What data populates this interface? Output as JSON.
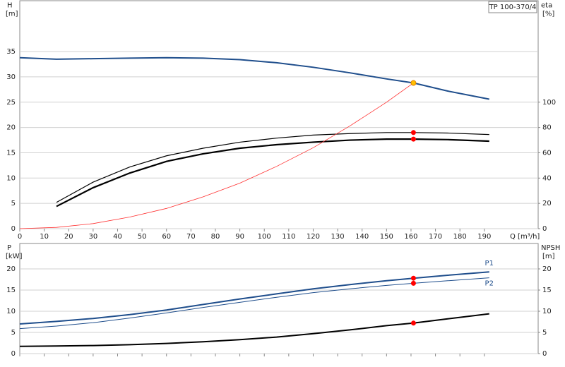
{
  "chart_data": [
    {
      "type": "line",
      "title": "TP 100-370/4",
      "ylabel": "H",
      "yunit": "[m]",
      "y2label": "eta",
      "y2unit": "[%]",
      "xlabel": "Q [m³/h]",
      "x": [
        0,
        15,
        30,
        45,
        60,
        75,
        90,
        105,
        120,
        135,
        150,
        161,
        175,
        192
      ],
      "xlim": [
        0,
        212
      ],
      "xticks": [
        0,
        10,
        20,
        30,
        40,
        50,
        60,
        70,
        80,
        90,
        100,
        110,
        120,
        130,
        140,
        150,
        160,
        170,
        180,
        190
      ],
      "ylim": [
        0,
        45
      ],
      "yticks": [
        0,
        5,
        10,
        15,
        20,
        25,
        30,
        35
      ],
      "y2lim": [
        0,
        180
      ],
      "y2ticks": [
        0,
        20,
        40,
        60,
        80,
        100
      ],
      "grid": true,
      "series": [
        {
          "color": "#1f4e8c",
          "width": 2,
          "values": [
            33.8,
            33.5,
            33.6,
            33.7,
            33.8,
            33.7,
            33.4,
            32.8,
            31.9,
            30.8,
            29.6,
            28.8,
            27.2,
            25.6
          ]
        },
        {
          "color": "#000000",
          "width": 1.2,
          "axis": "y2",
          "values": [
            null,
            20.8,
            36.8,
            48.8,
            57.6,
            63.6,
            68.4,
            71.6,
            74,
            75.2,
            76,
            76,
            75.6,
            74.4
          ]
        },
        {
          "color": "#000000",
          "width": 2.2,
          "axis": "y2",
          "values": [
            null,
            17.6,
            32.4,
            44,
            53.2,
            59.2,
            63.6,
            66.4,
            68.4,
            70,
            70.8,
            70.8,
            70.4,
            69.2
          ]
        },
        {
          "color": "#ff3030",
          "width": 0.8,
          "values": [
            0,
            0.25,
            1.0,
            2.3,
            4.0,
            6.3,
            9.0,
            12.3,
            16.0,
            20.3,
            25.0,
            28.8,
            null,
            null
          ]
        }
      ],
      "points": [
        {
          "x": 161,
          "y": 28.8,
          "color": "#ffc000"
        },
        {
          "x": 161,
          "y": 76,
          "axis": "y2",
          "color": "#ff0000"
        },
        {
          "x": 161,
          "y": 70.8,
          "axis": "y2",
          "color": "#ff0000"
        }
      ]
    },
    {
      "type": "line",
      "ylabel": "P",
      "yunit": "[kW]",
      "y2label": "NPSH",
      "y2unit": "[m]",
      "x": [
        0,
        15,
        30,
        45,
        60,
        75,
        90,
        105,
        120,
        135,
        150,
        161,
        175,
        192
      ],
      "xlim": [
        0,
        212
      ],
      "xticks": [
        0,
        10,
        20,
        30,
        40,
        50,
        60,
        70,
        80,
        90,
        100,
        110,
        120,
        130,
        140,
        150,
        160,
        170,
        180,
        190
      ],
      "ylim": [
        0,
        26
      ],
      "yticks": [
        0,
        5,
        10,
        15,
        20
      ],
      "y2lim": [
        0,
        26
      ],
      "y2ticks": [
        0,
        5,
        10,
        15,
        20
      ],
      "grid": true,
      "series": [
        {
          "name": "P1",
          "color": "#1f4e8c",
          "width": 2,
          "values": [
            7.0,
            7.6,
            8.3,
            9.2,
            10.3,
            11.6,
            12.9,
            14.1,
            15.3,
            16.3,
            17.2,
            17.8,
            18.5,
            19.3
          ]
        },
        {
          "name": "P2",
          "color": "#1f4e8c",
          "width": 1,
          "values": [
            5.9,
            6.5,
            7.3,
            8.4,
            9.6,
            10.9,
            12.1,
            13.3,
            14.4,
            15.3,
            16.1,
            16.6,
            17.2,
            17.9
          ]
        },
        {
          "color": "#000000",
          "width": 2,
          "axis": "y2",
          "values": [
            1.7,
            1.8,
            1.9,
            2.1,
            2.4,
            2.8,
            3.3,
            3.9,
            4.7,
            5.6,
            6.6,
            7.2,
            8.2,
            9.4
          ]
        }
      ],
      "points": [
        {
          "x": 161,
          "y": 17.8,
          "color": "#ff0000"
        },
        {
          "x": 161,
          "y": 16.6,
          "color": "#ff0000"
        },
        {
          "x": 161,
          "y": 7.2,
          "axis": "y2",
          "color": "#ff0000"
        }
      ]
    }
  ]
}
